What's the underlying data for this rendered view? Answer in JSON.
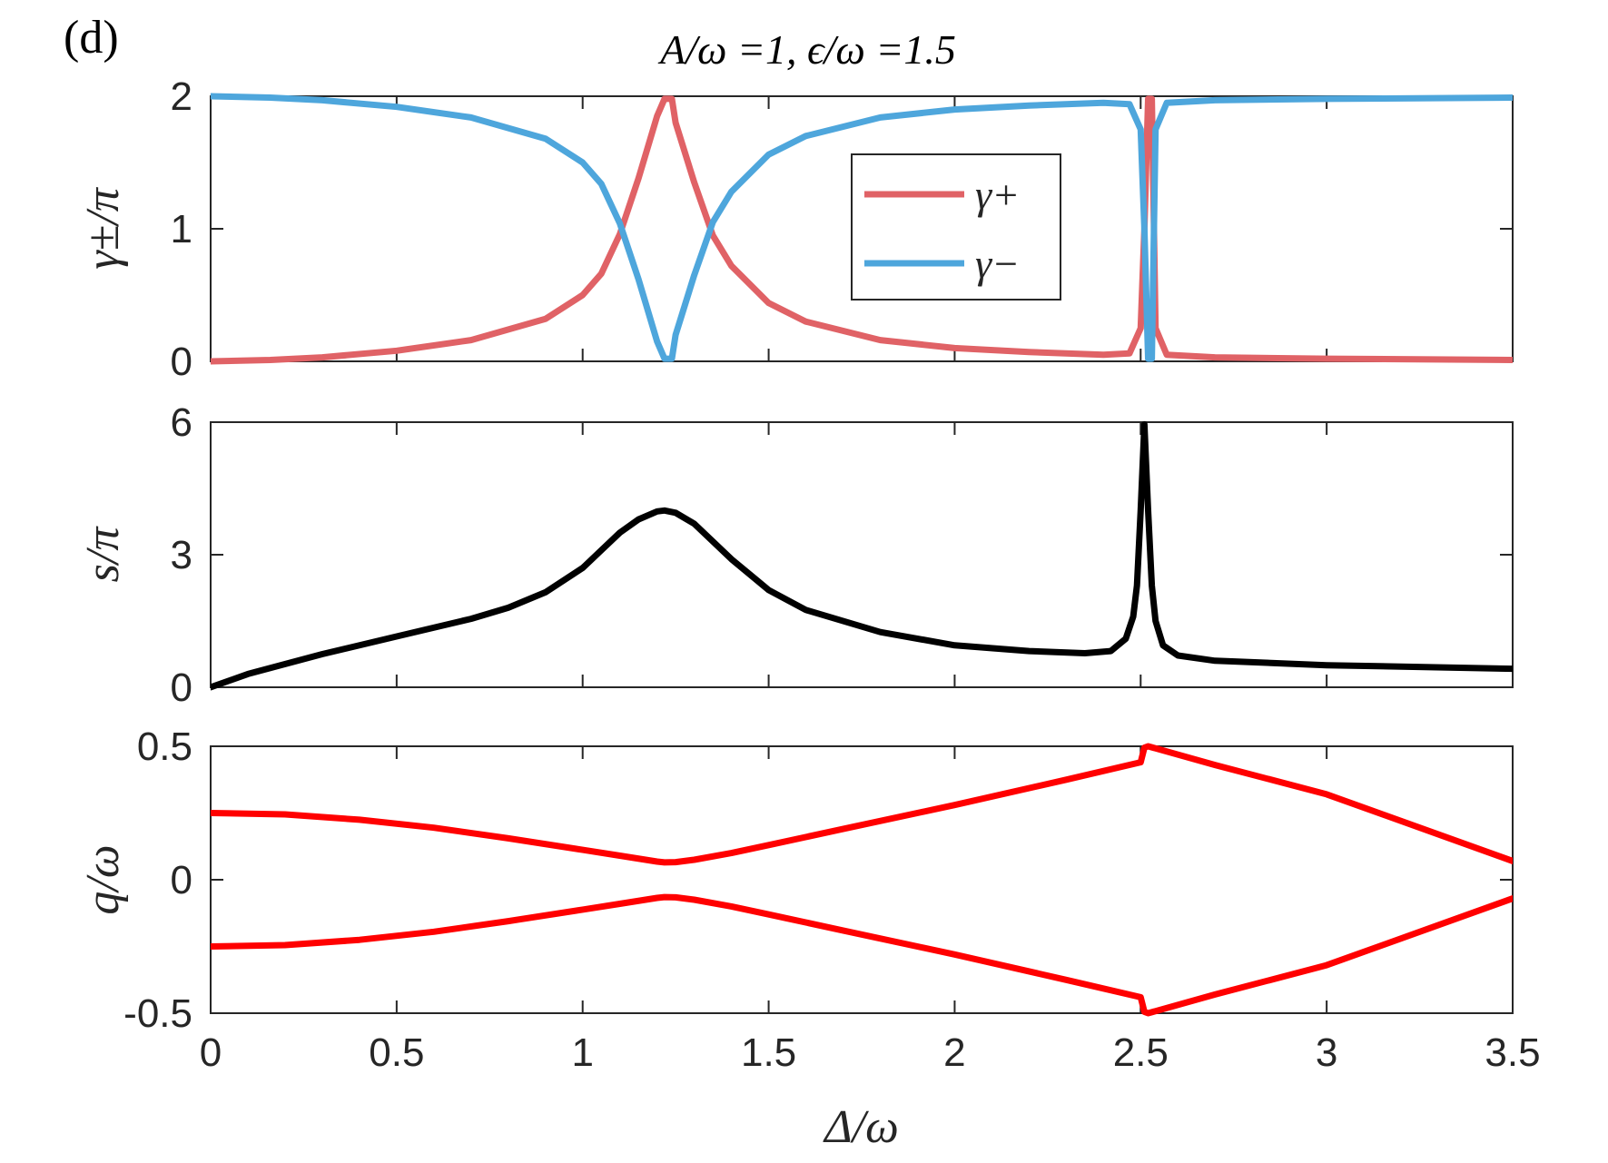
{
  "figure": {
    "panel_label": "(d)",
    "title": "A/ω =1, ϵ/ω =1.5"
  },
  "colors": {
    "gamma_plus": "#e06266",
    "gamma_minus": "#4ea6dc",
    "s": "#000000",
    "q": "#ff0000",
    "axes": "#262626"
  },
  "chart_data": [
    {
      "type": "line",
      "ylabel": "γ±/π",
      "xlim": [
        0,
        3.5
      ],
      "ylim": [
        0,
        2
      ],
      "yticks": [
        0,
        1,
        2
      ],
      "ytick_labels": [
        "0",
        "1",
        "2"
      ],
      "grid": false,
      "legend": {
        "position": "top-center",
        "entries": [
          "γ+",
          "γ−"
        ]
      },
      "series": [
        {
          "name": "γ+",
          "x": [
            0.0,
            0.16,
            0.3,
            0.5,
            0.7,
            0.9,
            1.0,
            1.05,
            1.1,
            1.15,
            1.2,
            1.22,
            1.23,
            1.24,
            1.25,
            1.3,
            1.35,
            1.4,
            1.5,
            1.6,
            1.8,
            2.0,
            2.2,
            2.4,
            2.47,
            2.5,
            2.51,
            2.52,
            2.53,
            2.54,
            2.57,
            2.7,
            3.0,
            3.5
          ],
          "y": [
            0.0,
            0.01,
            0.03,
            0.08,
            0.16,
            0.32,
            0.5,
            0.66,
            0.96,
            1.38,
            1.85,
            1.98,
            1.98,
            1.98,
            1.8,
            1.35,
            0.95,
            0.72,
            0.44,
            0.3,
            0.16,
            0.1,
            0.07,
            0.05,
            0.06,
            0.25,
            1.0,
            1.98,
            1.98,
            0.25,
            0.05,
            0.03,
            0.02,
            0.01
          ]
        },
        {
          "name": "γ−",
          "x": [
            0.0,
            0.16,
            0.3,
            0.5,
            0.7,
            0.9,
            1.0,
            1.05,
            1.1,
            1.15,
            1.2,
            1.22,
            1.23,
            1.24,
            1.25,
            1.3,
            1.35,
            1.4,
            1.5,
            1.6,
            1.8,
            2.0,
            2.2,
            2.4,
            2.47,
            2.5,
            2.51,
            2.52,
            2.53,
            2.54,
            2.57,
            2.7,
            3.0,
            3.5
          ],
          "y": [
            2.0,
            1.99,
            1.97,
            1.92,
            1.84,
            1.68,
            1.5,
            1.34,
            1.04,
            0.62,
            0.15,
            0.02,
            0.02,
            0.02,
            0.2,
            0.65,
            1.05,
            1.28,
            1.56,
            1.7,
            1.84,
            1.9,
            1.93,
            1.95,
            1.94,
            1.75,
            1.0,
            0.02,
            0.02,
            1.75,
            1.95,
            1.97,
            1.98,
            1.99
          ]
        }
      ]
    },
    {
      "type": "line",
      "ylabel": "s/π",
      "xlim": [
        0,
        3.5
      ],
      "ylim": [
        0,
        6
      ],
      "yticks": [
        0,
        3,
        6
      ],
      "ytick_labels": [
        "0",
        "3",
        "6"
      ],
      "grid": false,
      "series": [
        {
          "x": [
            0.0,
            0.1,
            0.3,
            0.5,
            0.7,
            0.8,
            0.9,
            1.0,
            1.05,
            1.1,
            1.15,
            1.2,
            1.22,
            1.25,
            1.3,
            1.35,
            1.4,
            1.5,
            1.6,
            1.8,
            2.0,
            2.2,
            2.35,
            2.42,
            2.46,
            2.48,
            2.49,
            2.5,
            2.51,
            2.52,
            2.53,
            2.54,
            2.56,
            2.6,
            2.7,
            3.0,
            3.5
          ],
          "y": [
            0.0,
            0.3,
            0.75,
            1.15,
            1.55,
            1.8,
            2.15,
            2.7,
            3.1,
            3.5,
            3.8,
            3.98,
            4.0,
            3.95,
            3.7,
            3.3,
            2.9,
            2.2,
            1.75,
            1.25,
            0.95,
            0.82,
            0.77,
            0.82,
            1.1,
            1.6,
            2.3,
            4.0,
            5.95,
            4.0,
            2.3,
            1.5,
            0.95,
            0.72,
            0.6,
            0.5,
            0.42
          ]
        }
      ]
    },
    {
      "type": "line",
      "ylabel": "q/ω",
      "xlabel": "Δ/ω",
      "xlim": [
        0,
        3.5
      ],
      "ylim": [
        -0.5,
        0.5
      ],
      "yticks": [
        -0.5,
        0,
        0.5
      ],
      "ytick_labels": [
        "-0.5",
        "0",
        "0.5"
      ],
      "xticks": [
        0,
        0.5,
        1,
        1.5,
        2,
        2.5,
        3,
        3.5
      ],
      "xtick_labels": [
        "0",
        "0.5",
        "1",
        "1.5",
        "2",
        "2.5",
        "3",
        "3.5"
      ],
      "grid": false,
      "series": [
        {
          "x": [
            0.0,
            0.2,
            0.4,
            0.6,
            0.8,
            1.0,
            1.1,
            1.2,
            1.22,
            1.25,
            1.3,
            1.4,
            1.5,
            1.7,
            2.0,
            2.3,
            2.5,
            2.51,
            2.52,
            2.7,
            3.0,
            3.5
          ],
          "y": [
            0.25,
            0.245,
            0.225,
            0.195,
            0.155,
            0.112,
            0.09,
            0.068,
            0.065,
            0.066,
            0.075,
            0.1,
            0.13,
            0.19,
            0.28,
            0.375,
            0.44,
            0.495,
            0.5,
            0.43,
            0.32,
            0.07
          ]
        },
        {
          "x": [
            0.0,
            0.2,
            0.4,
            0.6,
            0.8,
            1.0,
            1.1,
            1.2,
            1.22,
            1.25,
            1.3,
            1.4,
            1.5,
            1.7,
            2.0,
            2.3,
            2.5,
            2.51,
            2.52,
            2.7,
            3.0,
            3.5
          ],
          "y": [
            -0.25,
            -0.245,
            -0.225,
            -0.195,
            -0.155,
            -0.112,
            -0.09,
            -0.068,
            -0.065,
            -0.066,
            -0.075,
            -0.1,
            -0.13,
            -0.19,
            -0.28,
            -0.375,
            -0.44,
            -0.495,
            -0.5,
            -0.43,
            -0.32,
            -0.07
          ]
        }
      ]
    }
  ]
}
